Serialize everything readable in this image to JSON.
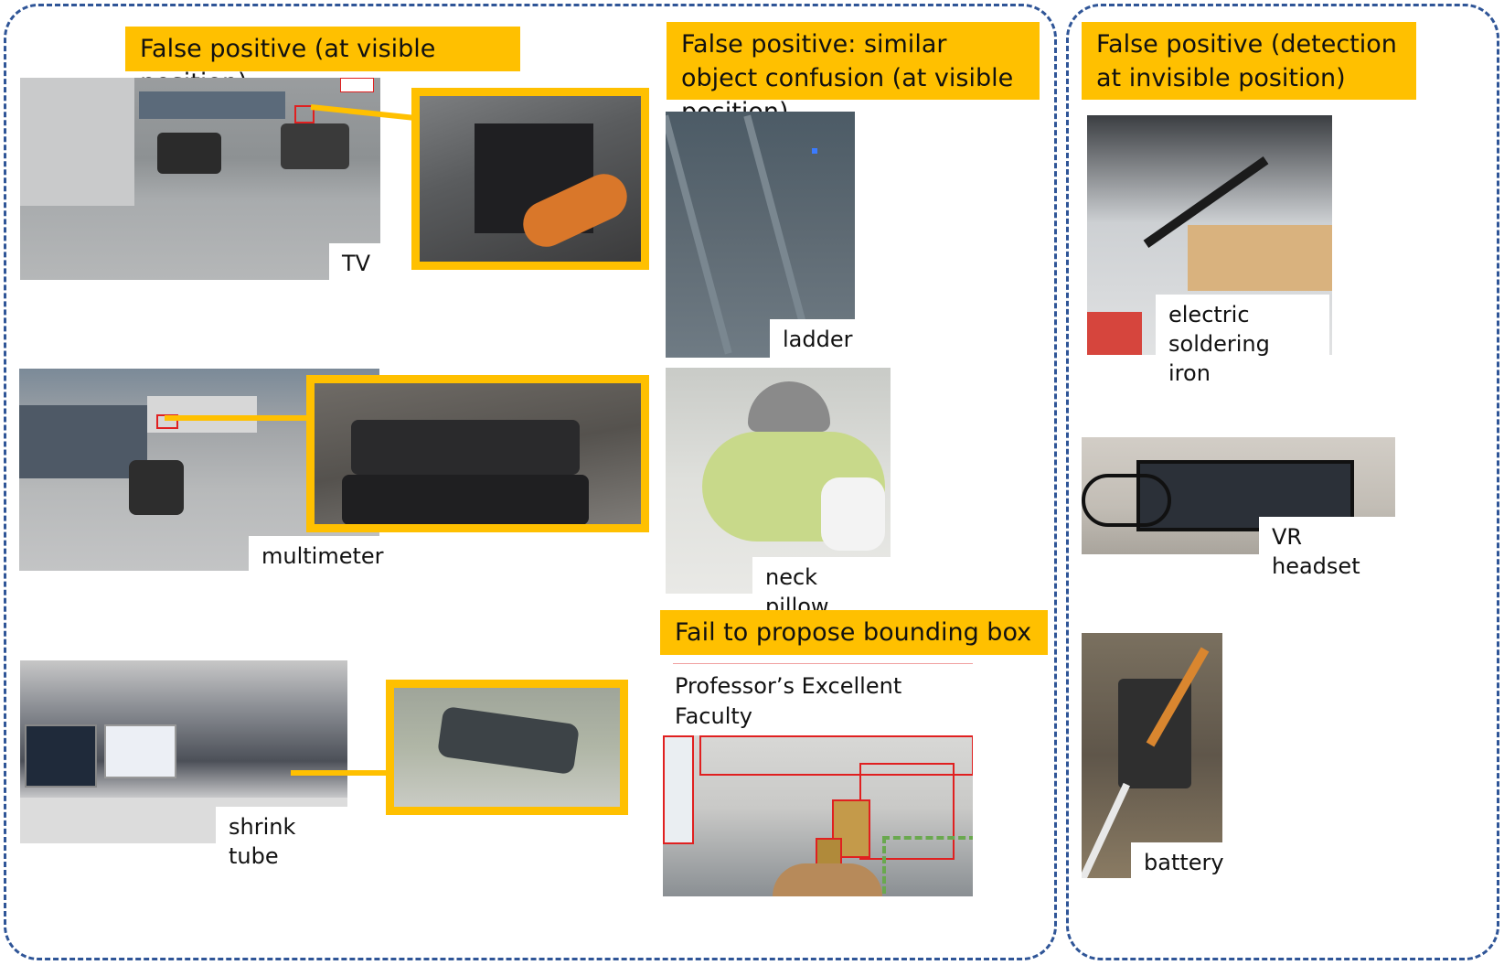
{
  "headers": {
    "visible": "False positive (at visible position)",
    "similar": "False positive: similar object confusion (at visible position)",
    "invisible": "False positive (detection at invisible position)",
    "fail": "Fail to propose bounding box"
  },
  "labels": {
    "tv": "TV",
    "multimeter": "multimeter",
    "shrink_tube": "shrink tube",
    "ladder": "ladder",
    "neck_pillow": "neck pillow",
    "soldering_iron": "electric\nsoldering iron",
    "vr_headset": "VR headset",
    "battery": "battery"
  },
  "fail_caption": "Professor’s Excellent Faculty\nAward",
  "colors": {
    "accent": "#ffc000",
    "dashed_border": "#2f5597",
    "box_red": "#e02020",
    "box_green": "#6aa84f"
  }
}
